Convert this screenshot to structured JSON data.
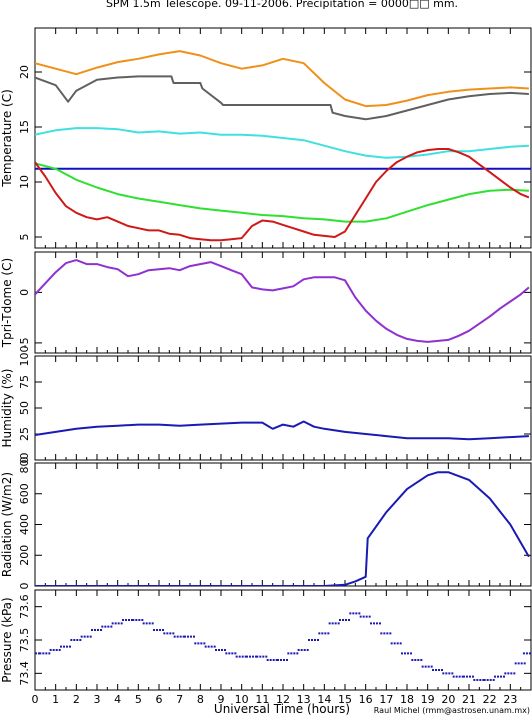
{
  "title": "SPM 1.5m Telescope. 09-11-2006. Precipitation = 0000□□ mm.",
  "xlabel": "Universal Time (hours)",
  "credit": "Raul Michel (rmm@astrosen.unam.mx)",
  "x_ticks": [
    "0",
    "1",
    "2",
    "3",
    "4",
    "5",
    "6",
    "7",
    "8",
    "9",
    "10",
    "11",
    "12",
    "13",
    "14",
    "15",
    "16",
    "17",
    "18",
    "19",
    "20",
    "21",
    "22",
    "23"
  ],
  "colors": {
    "orange": "#f0901a",
    "gray": "#606060",
    "cyan": "#40e0e0",
    "blue": "#1010c0",
    "green": "#30e030",
    "red": "#d01818",
    "purple": "#9030d0",
    "navy": "#1a1ab4"
  },
  "chart_data": [
    {
      "type": "line",
      "ylabel": "Temperature (C)",
      "ylim": [
        4,
        24
      ],
      "y_ticks": [
        "5",
        "10",
        "15",
        "20"
      ],
      "series": [
        {
          "color": "orange",
          "x": [
            0,
            1,
            2,
            3,
            4,
            5,
            6,
            7,
            8,
            9,
            10,
            11,
            12,
            13,
            14,
            15,
            16,
            17,
            18,
            19,
            20,
            21,
            22,
            23,
            23.9
          ],
          "y": [
            20.8,
            20.3,
            19.8,
            20.4,
            20.9,
            21.2,
            21.6,
            21.9,
            21.5,
            20.8,
            20.3,
            20.6,
            21.2,
            20.8,
            19.0,
            17.5,
            16.9,
            17.0,
            17.4,
            17.9,
            18.2,
            18.4,
            18.5,
            18.6,
            18.5
          ]
        },
        {
          "color": "gray",
          "x": [
            0,
            1,
            1.6,
            2,
            3,
            4,
            5,
            6,
            6.6,
            6.7,
            8,
            8.1,
            9,
            9.1,
            14.3,
            14.4,
            15,
            16,
            17,
            18,
            19,
            20,
            21,
            22,
            23,
            23.9
          ],
          "y": [
            19.5,
            18.8,
            17.3,
            18.3,
            19.3,
            19.5,
            19.6,
            19.6,
            19.6,
            19.0,
            19.0,
            18.5,
            17.2,
            17.0,
            17.0,
            16.3,
            16.0,
            15.7,
            16.0,
            16.5,
            17.0,
            17.5,
            17.8,
            18.0,
            18.1,
            18.0
          ]
        },
        {
          "color": "cyan",
          "x": [
            0,
            1,
            2,
            3,
            4,
            5,
            6,
            7,
            8,
            9,
            10,
            11,
            12,
            13,
            14,
            15,
            16,
            17,
            18,
            19,
            20,
            21,
            22,
            23,
            23.9
          ],
          "y": [
            14.3,
            14.7,
            14.9,
            14.9,
            14.8,
            14.5,
            14.6,
            14.4,
            14.5,
            14.3,
            14.3,
            14.2,
            14.0,
            13.8,
            13.3,
            12.8,
            12.4,
            12.2,
            12.3,
            12.5,
            12.8,
            12.8,
            13.0,
            13.2,
            13.3
          ]
        },
        {
          "color": "blue",
          "x": [
            0,
            24
          ],
          "y": [
            11.2,
            11.2
          ]
        },
        {
          "color": "green",
          "x": [
            0,
            1,
            2,
            3,
            4,
            5,
            6,
            7,
            8,
            9,
            10,
            11,
            12,
            13,
            14,
            15,
            16,
            17,
            18,
            19,
            20,
            21,
            22,
            23,
            23.9
          ],
          "y": [
            11.7,
            11.2,
            10.2,
            9.5,
            8.9,
            8.5,
            8.2,
            7.9,
            7.6,
            7.4,
            7.2,
            7.0,
            6.9,
            6.7,
            6.6,
            6.4,
            6.4,
            6.7,
            7.3,
            7.9,
            8.4,
            8.9,
            9.2,
            9.3,
            9.2
          ]
        },
        {
          "color": "red",
          "x": [
            0,
            0.5,
            1,
            1.5,
            2,
            2.5,
            3,
            3.5,
            4,
            4.5,
            5,
            5.5,
            6,
            6.5,
            7,
            7.5,
            8,
            8.5,
            9,
            9.5,
            10,
            10.5,
            11,
            11.5,
            12,
            12.5,
            13,
            13.5,
            14,
            14.5,
            15,
            15.5,
            16,
            16.5,
            17,
            17.5,
            18,
            18.5,
            19,
            19.5,
            20,
            20.5,
            21,
            21.5,
            22,
            22.5,
            23,
            23.5,
            23.9
          ],
          "y": [
            11.8,
            10.5,
            9.0,
            7.8,
            7.2,
            6.8,
            6.6,
            6.8,
            6.4,
            6.0,
            5.8,
            5.6,
            5.6,
            5.3,
            5.2,
            4.9,
            4.8,
            4.7,
            4.7,
            4.8,
            4.9,
            6.0,
            6.5,
            6.4,
            6.1,
            5.8,
            5.5,
            5.2,
            5.1,
            5.0,
            5.5,
            7.0,
            8.5,
            10.0,
            11.0,
            11.8,
            12.3,
            12.7,
            12.9,
            13.0,
            13.0,
            12.7,
            12.3,
            11.6,
            10.9,
            10.2,
            9.5,
            8.9,
            8.6
          ]
        }
      ]
    },
    {
      "type": "line",
      "ylabel": "Tpri-Tdome (C)",
      "ylim": [
        -6,
        4
      ],
      "y_ticks": [
        "-5",
        "0"
      ],
      "series": [
        {
          "color": "purple",
          "x": [
            0,
            0.5,
            1,
            1.5,
            2,
            2.5,
            3,
            3.5,
            4,
            4.5,
            5,
            5.5,
            6,
            6.5,
            7,
            7.5,
            8,
            8.5,
            9,
            9.5,
            10,
            10.5,
            11,
            11.5,
            12,
            12.5,
            13,
            13.5,
            14,
            14.5,
            15,
            15.5,
            16,
            16.5,
            17,
            17.5,
            18,
            18.5,
            19,
            19.5,
            20,
            20.5,
            21,
            21.5,
            22,
            22.5,
            23,
            23.5,
            23.9
          ],
          "y": [
            -0.2,
            0.9,
            2.0,
            2.9,
            3.2,
            2.8,
            2.8,
            2.5,
            2.3,
            1.6,
            1.8,
            2.2,
            2.3,
            2.4,
            2.2,
            2.6,
            2.8,
            3.0,
            2.6,
            2.2,
            1.8,
            0.5,
            0.3,
            0.2,
            0.4,
            0.6,
            1.3,
            1.5,
            1.5,
            1.5,
            1.2,
            -0.5,
            -1.8,
            -2.8,
            -3.6,
            -4.2,
            -4.6,
            -4.8,
            -4.9,
            -4.8,
            -4.7,
            -4.3,
            -3.8,
            -3.1,
            -2.4,
            -1.6,
            -0.9,
            -0.2,
            0.5
          ]
        }
      ]
    },
    {
      "type": "line",
      "ylabel": "Humidity (%)",
      "ylim": [
        0,
        100
      ],
      "y_ticks": [
        "0",
        "25",
        "50",
        "75",
        "100"
      ],
      "series": [
        {
          "color": "navy",
          "x": [
            0,
            1,
            2,
            3,
            4,
            5,
            6,
            7,
            8,
            9,
            10,
            11,
            11.5,
            12,
            12.5,
            13,
            13.5,
            14,
            15,
            16,
            17,
            18,
            19,
            20,
            21,
            22,
            23,
            23.9
          ],
          "y": [
            24,
            27,
            30,
            32,
            33,
            34,
            34,
            33,
            34,
            35,
            36,
            36,
            30,
            34,
            32,
            37,
            32,
            30,
            27,
            25,
            23,
            21,
            21,
            21,
            20,
            21,
            22,
            23
          ]
        }
      ]
    },
    {
      "type": "line",
      "ylabel": "Radiation (W/m2)",
      "ylim": [
        0,
        800
      ],
      "y_ticks": [
        "0",
        "200",
        "400",
        "600",
        "800"
      ],
      "series": [
        {
          "color": "navy",
          "x": [
            0,
            1,
            2,
            3,
            4,
            5,
            6,
            7,
            8,
            9,
            10,
            11,
            12,
            13,
            14,
            15,
            15.5,
            16,
            16.1,
            17,
            18,
            19,
            19.5,
            20,
            21,
            22,
            23,
            23.9
          ],
          "y": [
            0,
            0,
            0,
            0,
            0,
            0,
            0,
            0,
            0,
            0,
            0,
            0,
            0,
            0,
            0,
            8,
            30,
            60,
            310,
            480,
            630,
            720,
            740,
            740,
            690,
            570,
            400,
            190
          ]
        }
      ]
    },
    {
      "type": "scatter",
      "ylabel": "Pressure (kPa)",
      "ylim": [
        73.35,
        73.65
      ],
      "y_ticks": [
        "73.4",
        "73.5",
        "73.6"
      ],
      "series": [
        {
          "color": "navy",
          "x": [
            0,
            0.5,
            1,
            1.5,
            2,
            2.5,
            3,
            3.5,
            4,
            4.5,
            5,
            5.5,
            6,
            6.5,
            7,
            7.5,
            8,
            8.5,
            9,
            9.5,
            10,
            10.5,
            11,
            11.5,
            12,
            12.5,
            13,
            13.5,
            14,
            14.5,
            15,
            15.5,
            16,
            16.5,
            17,
            17.5,
            18,
            18.5,
            19,
            19.5,
            20,
            20.5,
            21,
            21.5,
            22,
            22.5,
            23,
            23.5,
            23.9
          ],
          "y": [
            73.46,
            73.46,
            73.47,
            73.48,
            73.5,
            73.51,
            73.53,
            73.54,
            73.55,
            73.56,
            73.56,
            73.55,
            73.53,
            73.52,
            73.51,
            73.51,
            73.49,
            73.48,
            73.47,
            73.46,
            73.45,
            73.45,
            73.45,
            73.44,
            73.44,
            73.46,
            73.47,
            73.5,
            73.52,
            73.55,
            73.56,
            73.58,
            73.57,
            73.55,
            73.52,
            73.49,
            73.46,
            73.44,
            73.42,
            73.41,
            73.4,
            73.39,
            73.39,
            73.38,
            73.38,
            73.39,
            73.4,
            73.43,
            73.46
          ]
        }
      ]
    }
  ]
}
